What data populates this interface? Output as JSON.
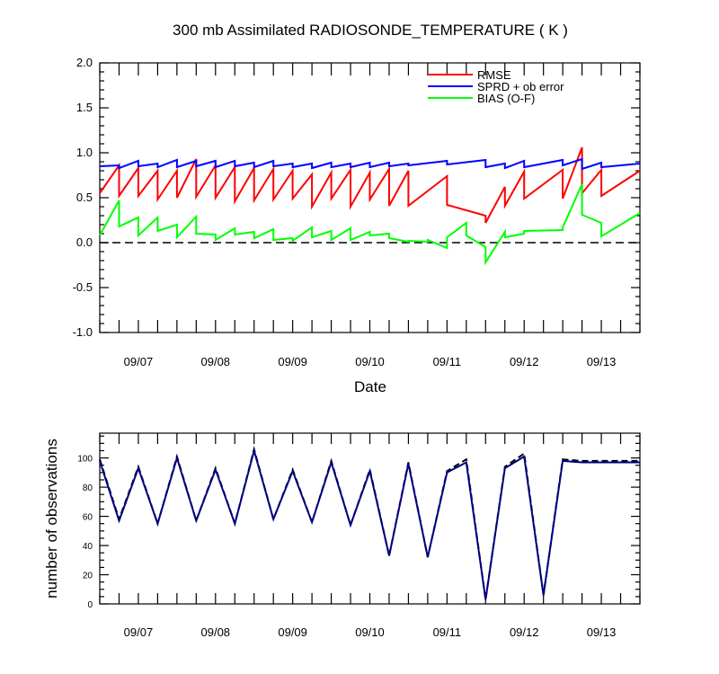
{
  "colors": {
    "rmse": "#ff0000",
    "sprd": "#0000ff",
    "bias": "#00ff00",
    "obs_used": "#000080",
    "obs_total": "#000000",
    "zero_line": "#000000"
  },
  "chart_data": [
    {
      "type": "line",
      "title": "300 mb Assimilated RADIOSONDE_TEMPERATURE ( K )",
      "xlabel": "Date",
      "ylabel": "",
      "xlim": [
        0,
        14
      ],
      "ylim": [
        -1.0,
        2.0
      ],
      "yticks": [
        -1.0,
        -0.5,
        0.0,
        0.5,
        1.0,
        1.5,
        2.0
      ],
      "ytick_labels": [
        "-1.0",
        "-0.5",
        "0.0",
        "0.5",
        "1.0",
        "1.5",
        "2.0"
      ],
      "xticks": [
        1,
        3,
        5,
        7,
        9,
        11,
        13
      ],
      "xtick_labels": [
        "09/07",
        "09/08",
        "09/09",
        "09/10",
        "09/11",
        "09/12",
        "09/13"
      ],
      "zero_line": 0.0,
      "legend": [
        "RMSE",
        "SPRD + ob error",
        "BIAS (O-F)"
      ],
      "legend_loc": "top-right",
      "series": [
        {
          "name": "RMSE",
          "color_key": "rmse",
          "x": [
            0,
            0.5,
            0.5,
            1,
            1,
            1.5,
            1.5,
            2,
            2,
            2.5,
            2.5,
            3,
            3,
            3.5,
            3.5,
            4,
            4,
            4.5,
            4.5,
            5,
            5,
            5.5,
            5.5,
            6,
            6,
            6.5,
            6.5,
            7,
            7,
            7.5,
            7.5,
            8,
            8,
            9,
            9,
            10,
            10,
            10.5,
            10.5,
            11,
            11,
            12,
            12,
            12.5,
            12.5,
            13,
            13,
            14
          ],
          "values": [
            0.55,
            0.86,
            0.52,
            0.83,
            0.52,
            0.8,
            0.48,
            0.8,
            0.5,
            0.93,
            0.51,
            0.86,
            0.5,
            0.84,
            0.46,
            0.83,
            0.47,
            0.82,
            0.48,
            0.8,
            0.49,
            0.76,
            0.4,
            0.78,
            0.49,
            0.81,
            0.4,
            0.78,
            0.48,
            0.82,
            0.41,
            0.8,
            0.41,
            0.74,
            0.42,
            0.3,
            0.22,
            0.62,
            0.41,
            0.79,
            0.49,
            0.81,
            0.49,
            1.06,
            0.55,
            0.81,
            0.52,
            0.8
          ]
        },
        {
          "name": "SPRD + ob error",
          "color_key": "sprd",
          "x": [
            0,
            0.5,
            0.5,
            1,
            1,
            1.5,
            1.5,
            2,
            2,
            2.5,
            2.5,
            3,
            3,
            3.5,
            3.5,
            4,
            4,
            4.5,
            4.5,
            5,
            5,
            5.5,
            5.5,
            6,
            6,
            6.5,
            6.5,
            7,
            7,
            7.5,
            7.5,
            8,
            8,
            9,
            9,
            10,
            10,
            10.5,
            10.5,
            11,
            11,
            12,
            12,
            12.5,
            12.5,
            13,
            13,
            14
          ],
          "values": [
            0.85,
            0.86,
            0.83,
            0.91,
            0.85,
            0.88,
            0.84,
            0.92,
            0.84,
            0.91,
            0.85,
            0.91,
            0.84,
            0.91,
            0.85,
            0.89,
            0.84,
            0.91,
            0.85,
            0.88,
            0.84,
            0.88,
            0.83,
            0.89,
            0.84,
            0.88,
            0.84,
            0.89,
            0.84,
            0.89,
            0.85,
            0.88,
            0.86,
            0.91,
            0.87,
            0.92,
            0.84,
            0.88,
            0.83,
            0.91,
            0.84,
            0.92,
            0.86,
            0.93,
            0.82,
            0.89,
            0.84,
            0.88
          ]
        },
        {
          "name": "BIAS (O-F)",
          "color_key": "bias",
          "x": [
            0,
            0.5,
            0.5,
            1,
            1,
            1.5,
            1.5,
            2,
            2,
            2.5,
            2.5,
            3,
            3,
            3.5,
            3.5,
            4,
            4,
            4.5,
            4.5,
            5,
            5,
            5.5,
            5.5,
            6,
            6,
            6.5,
            6.5,
            7,
            7,
            7.5,
            7.5,
            8,
            8,
            8.5,
            8.5,
            9,
            9,
            9.5,
            9.5,
            10,
            10,
            10.5,
            10.5,
            11,
            11,
            12,
            12,
            12.5,
            12.5,
            13,
            13,
            14
          ],
          "values": [
            0.08,
            0.47,
            0.18,
            0.28,
            0.08,
            0.28,
            0.13,
            0.2,
            0.06,
            0.29,
            0.1,
            0.09,
            0.03,
            0.16,
            0.09,
            0.12,
            0.05,
            0.15,
            0.03,
            0.05,
            0.02,
            0.17,
            0.06,
            0.13,
            0.03,
            0.16,
            0.03,
            0.12,
            0.08,
            0.1,
            0.05,
            0.01,
            0.02,
            0.01,
            0.03,
            -0.06,
            0.06,
            0.22,
            0.08,
            -0.05,
            -0.22,
            0.12,
            0.06,
            0.1,
            0.13,
            0.14,
            0.17,
            0.65,
            0.31,
            0.22,
            0.07,
            0.33
          ]
        }
      ]
    },
    {
      "type": "line",
      "title": "",
      "xlabel": "",
      "ylabel": "number of observations",
      "xlim": [
        0,
        14
      ],
      "ylim": [
        0,
        117
      ],
      "yticks": [
        0,
        20,
        40,
        60,
        80,
        100
      ],
      "ytick_labels": [
        "0",
        "20",
        "40",
        "60",
        "80",
        "100"
      ],
      "xticks": [
        1,
        3,
        5,
        7,
        9,
        11,
        13
      ],
      "xtick_labels": [
        "09/07",
        "09/08",
        "09/09",
        "09/10",
        "09/11",
        "09/12",
        "09/13"
      ],
      "series": [
        {
          "name": "possible observations",
          "color_key": "obs_total",
          "dashed": true,
          "x": [
            0,
            0.5,
            1,
            1.5,
            2,
            2.5,
            3,
            3.5,
            4,
            4.5,
            5,
            5.5,
            6,
            6.5,
            7,
            7.5,
            8,
            8.5,
            9,
            9.5,
            10,
            10.5,
            11,
            11.5,
            12,
            12.5,
            13,
            14
          ],
          "values": [
            99,
            58,
            94,
            55,
            101,
            57,
            93,
            55,
            106,
            58,
            92,
            56,
            98,
            54,
            92,
            33,
            97,
            32,
            91,
            99,
            3,
            94,
            103,
            6,
            99,
            98,
            98,
            98
          ]
        },
        {
          "name": "assimilated observations",
          "color_key": "obs_used",
          "dashed": false,
          "x": [
            0,
            0.5,
            1,
            1.5,
            2,
            2.5,
            3,
            3.5,
            4,
            4.5,
            5,
            5.5,
            6,
            6.5,
            7,
            7.5,
            8,
            8.5,
            9,
            9.5,
            10,
            10.5,
            11,
            11.5,
            12,
            12.5,
            13,
            14
          ],
          "values": [
            98,
            57,
            93,
            55,
            100,
            57,
            92,
            55,
            105,
            58,
            91,
            56,
            97,
            54,
            91,
            33,
            96,
            32,
            90,
            97,
            3,
            93,
            101,
            6,
            98,
            97,
            97,
            97
          ]
        }
      ]
    }
  ]
}
